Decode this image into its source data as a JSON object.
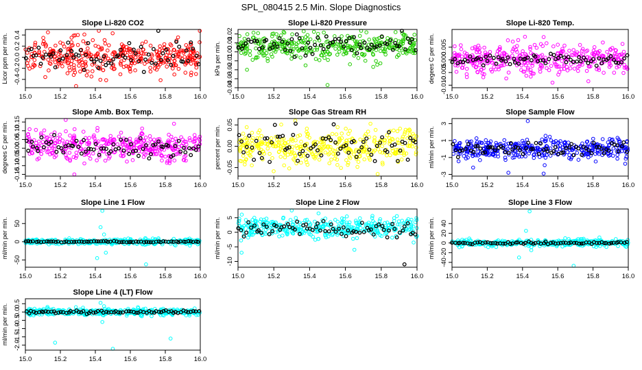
{
  "figure_title": "SPL_080415  2.5 Min. Slope Diagnostics",
  "colors": {
    "overlay": "#000000",
    "red": "#ff0000",
    "green": "#22cc00",
    "magenta": "#ff00ff",
    "yellow": "#ffff00",
    "blue": "#0000ff",
    "cyan": "#00ffff"
  },
  "chart_data": [
    {
      "type": "scatter",
      "title": "Slope Li-820 CO2",
      "ylabel": "Licor ppm per min.",
      "xlim": [
        15.0,
        16.0
      ],
      "ylim": [
        -0.55,
        0.5
      ],
      "xticks": [
        15.0,
        15.2,
        15.4,
        15.6,
        15.8,
        16.0
      ],
      "yticks": [
        -0.4,
        -0.2,
        0.0,
        0.2,
        0.4
      ],
      "xtick_labels": [
        "15.0",
        "15.2",
        "15.4",
        "15.6",
        "15.8",
        "16.0"
      ],
      "ytick_labels": [
        "-0.4",
        "-0.2",
        "0.0",
        "0.2",
        "0.4"
      ],
      "series": [
        {
          "color": "red",
          "spread": 0.18,
          "outliers": [
            [
              15.29,
              -0.52
            ],
            [
              15.42,
              0.48
            ],
            [
              15.3,
              0.4
            ]
          ]
        },
        {
          "color": "overlay",
          "spread": 0.16,
          "outliers": []
        }
      ]
    },
    {
      "type": "scatter",
      "title": "Slope Li-820 Pressure",
      "ylabel": "kPa per min.",
      "xlim": [
        15.0,
        16.0
      ],
      "ylim": [
        -0.04,
        0.025
      ],
      "xticks": [
        15.0,
        15.2,
        15.4,
        15.6,
        15.8,
        16.0
      ],
      "yticks": [
        -0.04,
        -0.03,
        -0.02,
        -0.01,
        0.0,
        0.01,
        0.02
      ],
      "xtick_labels": [
        "15.0",
        "15.2",
        "15.4",
        "15.6",
        "15.8",
        "16.0"
      ],
      "ytick_labels": [
        "-0.04",
        "-0.03",
        "-0.02",
        "-0.01",
        "0.00",
        "0.01",
        "0.02"
      ],
      "series": [
        {
          "color": "green",
          "center": 0.006,
          "spread": 0.008,
          "outliers": [
            [
              15.5,
              -0.037
            ],
            [
              15.05,
              -0.02
            ],
            [
              15.88,
              0.022
            ]
          ]
        },
        {
          "color": "overlay",
          "center": 0.008,
          "spread": 0.007,
          "outliers": []
        }
      ]
    },
    {
      "type": "scatter",
      "title": "Slope Li-820 Temp.",
      "ylabel": "degees C per min.",
      "xlim": [
        15.0,
        16.0
      ],
      "ylim": [
        -0.011,
        0.012
      ],
      "xticks": [
        15.0,
        15.2,
        15.4,
        15.6,
        15.8,
        16.0
      ],
      "yticks": [
        -0.01,
        -0.005,
        0.0,
        0.005
      ],
      "xtick_labels": [
        "15.0",
        "15.2",
        "15.4",
        "15.6",
        "15.8",
        "16.0"
      ],
      "ytick_labels": [
        "-0.010",
        "-0.005",
        "0.000",
        "0.005"
      ],
      "series": [
        {
          "color": "magenta",
          "spread": 0.0035,
          "outliers": [
            [
              15.52,
              0.009
            ],
            [
              15.57,
              -0.009
            ],
            [
              15.6,
              0.006
            ]
          ]
        },
        {
          "color": "overlay",
          "spread": 0.0012,
          "outliers": []
        }
      ]
    },
    {
      "type": "scatter",
      "title": "Slope Amb. Box Temp.",
      "ylabel": "degrees C per min.",
      "xlim": [
        15.0,
        16.0
      ],
      "ylim": [
        -0.16,
        0.17
      ],
      "xticks": [
        15.0,
        15.2,
        15.4,
        15.6,
        15.8,
        16.0
      ],
      "yticks": [
        -0.15,
        -0.1,
        -0.05,
        0.0,
        0.05,
        0.1,
        0.15
      ],
      "xtick_labels": [
        "15.0",
        "15.2",
        "15.4",
        "15.6",
        "15.8",
        "16.0"
      ],
      "ytick_labels": [
        "-0.15",
        "-0.10",
        "-0.05",
        "0.00",
        "0.05",
        "0.10",
        "0.15"
      ],
      "series": [
        {
          "color": "magenta",
          "center": 0.01,
          "spread": 0.05,
          "outliers": [
            [
              15.28,
              -0.15
            ],
            [
              15.85,
              0.14
            ]
          ]
        },
        {
          "color": "overlay",
          "spread": 0.035,
          "outliers": []
        }
      ]
    },
    {
      "type": "scatter",
      "title": "Slope Gas Stream RH",
      "ylabel": "percent per min.",
      "xlim": [
        15.0,
        16.0
      ],
      "ylim": [
        -0.07,
        0.065
      ],
      "xticks": [
        15.0,
        15.2,
        15.4,
        15.6,
        15.8,
        16.0
      ],
      "yticks": [
        -0.05,
        0.0,
        0.05
      ],
      "xtick_labels": [
        "15.0",
        "15.2",
        "15.4",
        "15.6",
        "15.8",
        "16.0"
      ],
      "ytick_labels": [
        "-0.05",
        "0.00",
        "0.05"
      ],
      "series": [
        {
          "color": "yellow",
          "spread": 0.025,
          "outliers": [
            [
              15.32,
              0.06
            ],
            [
              15.78,
              -0.065
            ]
          ]
        },
        {
          "color": "overlay",
          "spread": 0.022,
          "outliers": []
        }
      ]
    },
    {
      "type": "scatter",
      "title": "Slope Sample Flow",
      "ylabel": "ml/min per min.",
      "xlim": [
        15.0,
        16.0
      ],
      "ylim": [
        -3.2,
        3.6
      ],
      "xticks": [
        15.0,
        15.2,
        15.4,
        15.6,
        15.8,
        16.0
      ],
      "yticks": [
        -3,
        -1,
        1,
        3
      ],
      "xtick_labels": [
        "15.0",
        "15.2",
        "15.4",
        "15.6",
        "15.8",
        "16.0"
      ],
      "ytick_labels": [
        "-3",
        "-1",
        "1",
        "3"
      ],
      "series": [
        {
          "color": "blue",
          "spread": 0.7,
          "outliers": [
            [
              15.43,
              3.3
            ],
            [
              15.32,
              -2.8
            ],
            [
              15.52,
              -2.9
            ],
            [
              15.12,
              -2.2
            ]
          ]
        },
        {
          "color": "overlay",
          "spread": 0.5,
          "outliers": []
        }
      ]
    },
    {
      "type": "scatter",
      "title": "Slope Line 1 Flow",
      "ylabel": "ml/min per min.",
      "xlim": [
        15.0,
        16.0
      ],
      "ylim": [
        -70,
        90
      ],
      "xticks": [
        15.0,
        15.2,
        15.4,
        15.6,
        15.8,
        16.0
      ],
      "yticks": [
        -50,
        0,
        50
      ],
      "xtick_labels": [
        "15.0",
        "15.2",
        "15.4",
        "15.6",
        "15.8",
        "16.0"
      ],
      "ytick_labels": [
        "-50",
        "0",
        "50"
      ],
      "series": [
        {
          "color": "cyan",
          "spread": 4,
          "outliers": [
            [
              15.44,
              85
            ],
            [
              15.43,
              40
            ],
            [
              15.46,
              -30
            ],
            [
              15.45,
              20
            ],
            [
              15.69,
              -62
            ],
            [
              15.41,
              -45
            ]
          ]
        },
        {
          "color": "overlay",
          "spread": 1,
          "outliers": []
        }
      ]
    },
    {
      "type": "scatter",
      "title": "Slope Line 2 Flow",
      "ylabel": "ml/min per min.",
      "xlim": [
        15.0,
        16.0
      ],
      "ylim": [
        -12,
        8
      ],
      "xticks": [
        15.0,
        15.2,
        15.4,
        15.6,
        15.8,
        16.0
      ],
      "yticks": [
        -10,
        -5,
        0,
        5
      ],
      "xtick_labels": [
        "15.0",
        "15.2",
        "15.4",
        "15.6",
        "15.8",
        "16.0"
      ],
      "ytick_labels": [
        "-10",
        "-5",
        "0",
        "5"
      ],
      "series": [
        {
          "color": "cyan",
          "center": 1.5,
          "spread": 2.2,
          "outliers": [
            [
              15.02,
              -7
            ],
            [
              15.3,
              7.5
            ],
            [
              15.45,
              6.5
            ],
            [
              15.65,
              -6
            ]
          ]
        },
        {
          "color": "overlay",
          "center": 1,
          "spread": 1.8,
          "outliers": [
            [
              15.93,
              -11
            ]
          ]
        }
      ]
    },
    {
      "type": "scatter",
      "title": "Slope Line 3 Flow",
      "ylabel": "ml/min per min.",
      "xlim": [
        15.0,
        16.0
      ],
      "ylim": [
        -50,
        70
      ],
      "xticks": [
        15.0,
        15.2,
        15.4,
        15.6,
        15.8,
        16.0
      ],
      "yticks": [
        -40,
        -20,
        0,
        20,
        40
      ],
      "xtick_labels": [
        "15.0",
        "15.2",
        "15.4",
        "15.6",
        "15.8",
        "16.0"
      ],
      "ytick_labels": [
        "-40",
        "-20",
        "0",
        "20",
        "40"
      ],
      "series": [
        {
          "color": "cyan",
          "spread": 4,
          "outliers": [
            [
              15.44,
              65
            ],
            [
              15.42,
              25
            ],
            [
              15.38,
              -30
            ],
            [
              15.69,
              -47
            ],
            [
              15.45,
              -15
            ]
          ]
        },
        {
          "color": "overlay",
          "spread": 1.5,
          "outliers": []
        }
      ]
    },
    {
      "type": "scatter",
      "title": "Slope Line 4 (LT) Flow",
      "ylabel": "ml/min per min.",
      "xlim": [
        15.0,
        16.0
      ],
      "ylim": [
        -2.3,
        0.8
      ],
      "xticks": [
        15.0,
        15.2,
        15.4,
        15.6,
        15.8,
        16.0
      ],
      "yticks": [
        -2.0,
        -1.5,
        -1.0,
        -0.5,
        0.0,
        0.5
      ],
      "xtick_labels": [
        "15.0",
        "15.2",
        "15.4",
        "15.6",
        "15.8",
        "16.0"
      ],
      "ytick_labels": [
        "-2.0",
        "-1.5",
        "-1.0",
        "-0.5",
        "0.0",
        "0.5"
      ],
      "series": [
        {
          "color": "cyan",
          "spread": 0.12,
          "outliers": [
            [
              15.17,
              -1.85
            ],
            [
              15.5,
              -2.25
            ],
            [
              15.83,
              -1.6
            ],
            [
              15.43,
              0.55
            ],
            [
              15.44,
              -0.6
            ],
            [
              15.45,
              0.35
            ]
          ]
        },
        {
          "color": "overlay",
          "spread": 0.06,
          "outliers": []
        }
      ]
    }
  ]
}
